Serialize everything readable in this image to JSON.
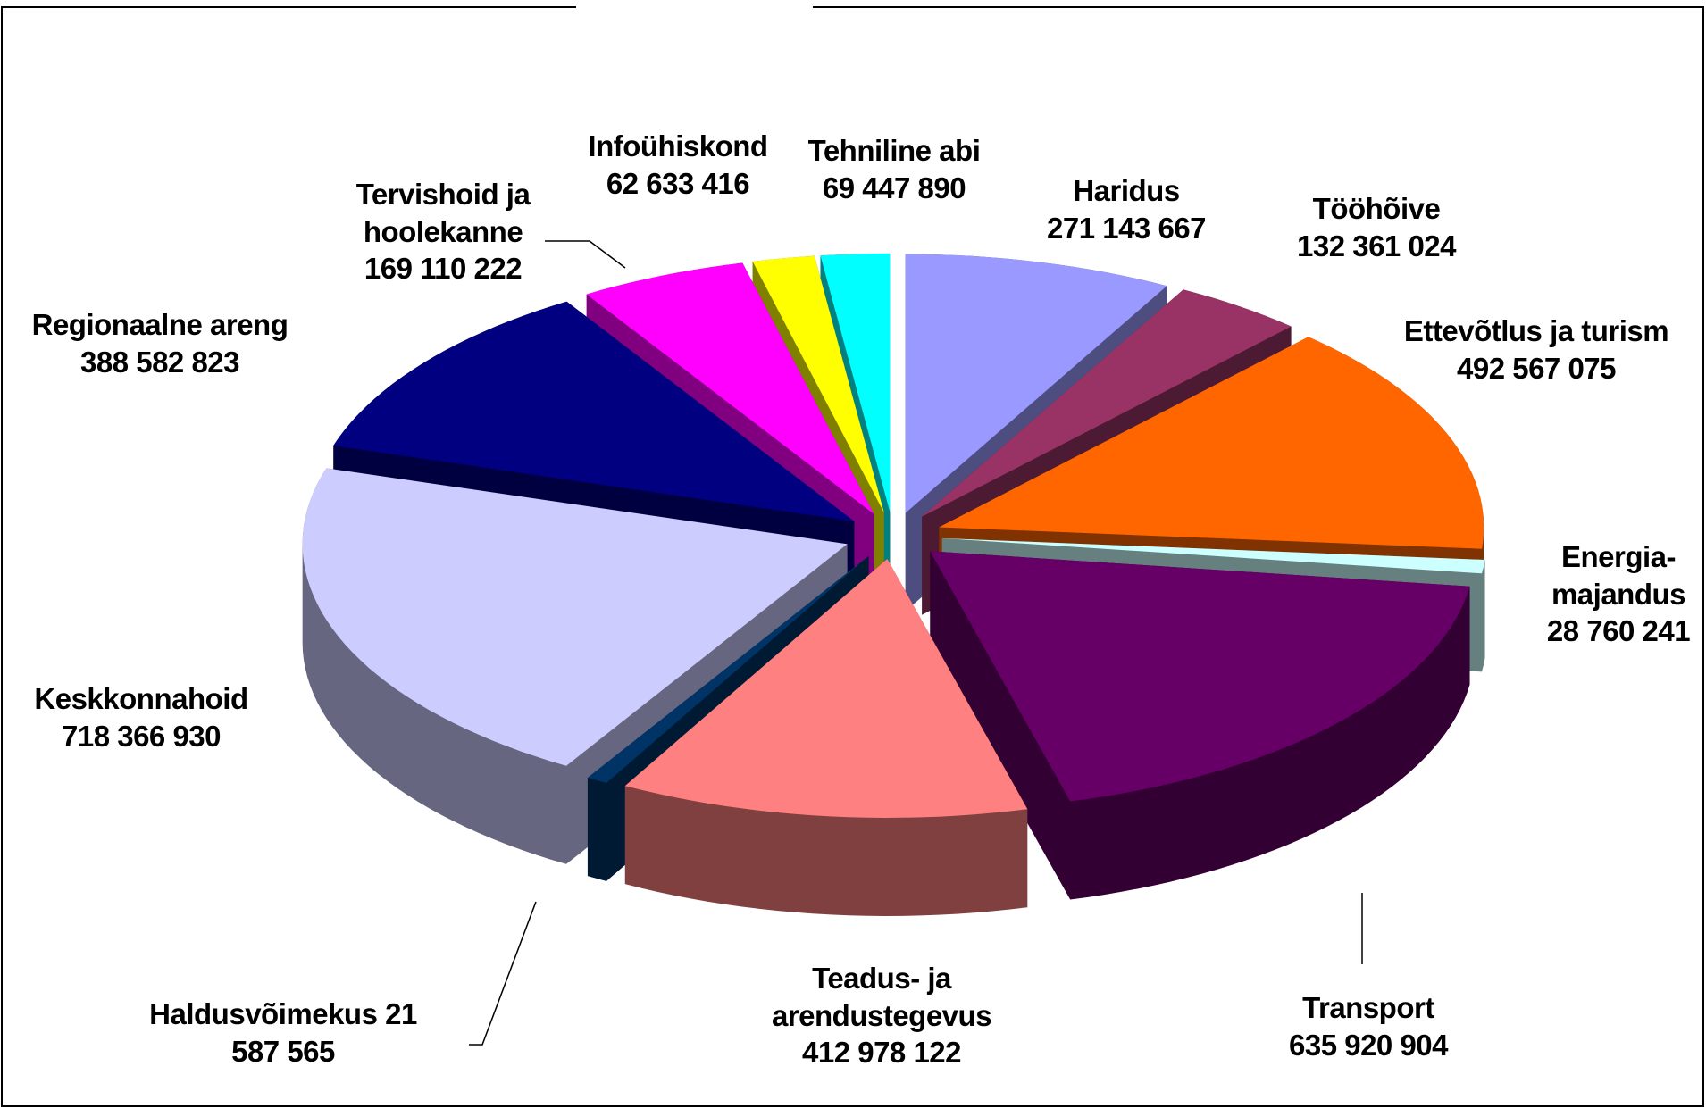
{
  "chart_data": {
    "type": "pie3d",
    "categories": [
      "Haridus",
      "Tööhõive",
      "Ettevõtlus ja turism",
      "Energia-majandus",
      "Transport",
      "Teadus- ja arendustegevus",
      "Haldusvõimekus",
      "Keskkonnahoid",
      "Regionaalne areng",
      "Tervishoid ja hoolekanne",
      "Infoühiskond",
      "Tehniline abi"
    ],
    "values": [
      271143667,
      132361024,
      492567075,
      28760241,
      635920904,
      412978122,
      21587565,
      718366930,
      388582823,
      169110222,
      62633416,
      69447890
    ],
    "value_labels": [
      "271 143 667",
      "132 361 024",
      "492 567 075",
      "28 760 241",
      "635 920 904",
      "412 978 122",
      "21 587 565",
      "718 366 930",
      "388 582 823",
      "169 110 222",
      "62 633 416",
      "69 447 890"
    ],
    "colors": [
      "#9999ff",
      "#993366",
      "#ff6600",
      "#ccffff",
      "#660066",
      "#ff8080",
      "#003366",
      "#ccccff",
      "#000080",
      "#ff00ff",
      "#ffff00",
      "#00ffff"
    ]
  }
}
